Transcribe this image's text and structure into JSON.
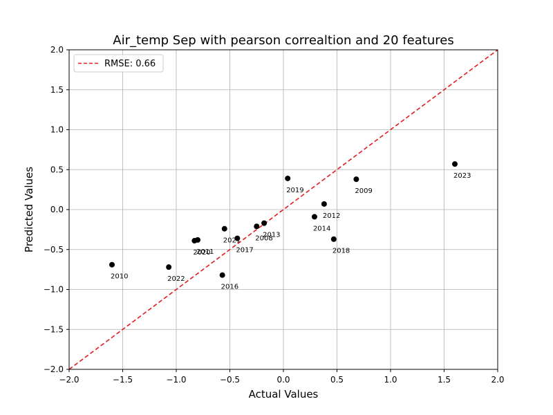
{
  "chart_data": {
    "type": "scatter",
    "title": "Air_temp Sep with pearson correaltion and 20 features",
    "xlabel": "Actual Values",
    "ylabel": "Predicted Values",
    "xlim": [
      -2.0,
      2.0
    ],
    "ylim": [
      -2.0,
      2.0
    ],
    "xticks": [
      -2.0,
      -1.5,
      -1.0,
      -0.5,
      0.0,
      0.5,
      1.0,
      1.5,
      2.0
    ],
    "yticks": [
      -2.0,
      -1.5,
      -1.0,
      -0.5,
      0.0,
      0.5,
      1.0,
      1.5,
      2.0
    ],
    "xtick_labels": [
      "−2.0",
      "−1.5",
      "−1.0",
      "−0.5",
      "0.0",
      "0.5",
      "1.0",
      "1.5",
      "2.0"
    ],
    "ytick_labels": [
      "−2.0",
      "−1.5",
      "−1.0",
      "−0.5",
      "0.0",
      "0.5",
      "1.0",
      "1.5",
      "2.0"
    ],
    "grid": true,
    "legend": {
      "placement": "top-left",
      "entries": [
        "RMSE: 0.66"
      ]
    },
    "reference_line": {
      "name": "RMSE: 0.66",
      "x": [
        -2.0,
        2.0
      ],
      "y": [
        -2.0,
        2.0
      ],
      "style": "dashed",
      "color": "#e41a1c"
    },
    "points": [
      {
        "label": "2010",
        "x": -1.6,
        "y": -0.69
      },
      {
        "label": "2022",
        "x": -1.07,
        "y": -0.72
      },
      {
        "label": "2020",
        "x": -0.83,
        "y": -0.39
      },
      {
        "label": "2011",
        "x": -0.8,
        "y": -0.38
      },
      {
        "label": "2016",
        "x": -0.57,
        "y": -0.82
      },
      {
        "label": "2021",
        "x": -0.55,
        "y": -0.24
      },
      {
        "label": "2017",
        "x": -0.43,
        "y": -0.36
      },
      {
        "label": "2008",
        "x": -0.25,
        "y": -0.21
      },
      {
        "label": "2013",
        "x": -0.18,
        "y": -0.17
      },
      {
        "label": "2019",
        "x": 0.04,
        "y": 0.39
      },
      {
        "label": "2014",
        "x": 0.29,
        "y": -0.09
      },
      {
        "label": "2012",
        "x": 0.38,
        "y": 0.07
      },
      {
        "label": "2018",
        "x": 0.47,
        "y": -0.37
      },
      {
        "label": "2009",
        "x": 0.68,
        "y": 0.38
      },
      {
        "label": "2023",
        "x": 1.6,
        "y": 0.57
      }
    ],
    "colors": {
      "points": "#000000",
      "reference_line": "#e41a1c",
      "grid": "#b0b0b0"
    }
  }
}
